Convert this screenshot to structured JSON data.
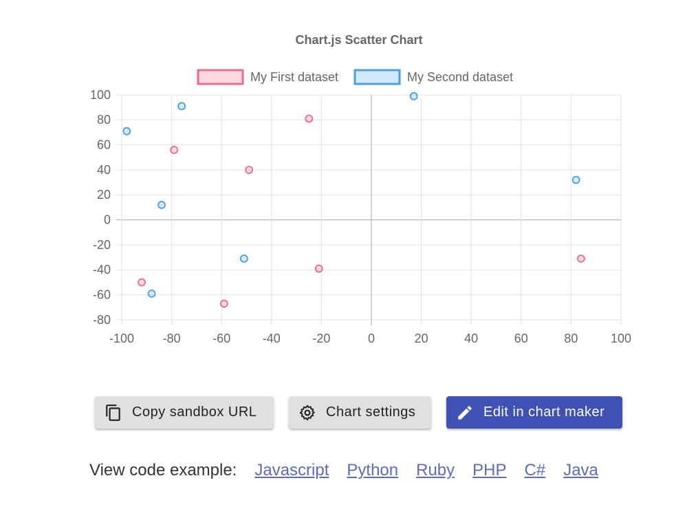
{
  "chart_data": {
    "type": "scatter",
    "title": "Chart.js Scatter Chart",
    "series": [
      {
        "name": "My First dataset",
        "color": "#ec6b85",
        "x": [
          -79,
          -49,
          -25,
          -92,
          -59,
          -21,
          84
        ],
        "values": [
          56,
          40,
          81,
          -50,
          -67,
          -39,
          -31
        ]
      },
      {
        "name": "My Second dataset",
        "color": "#4a9fe0",
        "x": [
          -98,
          -76,
          -84,
          -88,
          -51,
          17,
          82
        ],
        "values": [
          71,
          91,
          12,
          -59,
          -31,
          99,
          32
        ]
      }
    ],
    "xlim": [
      -100,
      100
    ],
    "xticks": [
      -100,
      -80,
      -60,
      -40,
      -20,
      0,
      20,
      40,
      60,
      80,
      100
    ],
    "ylim": [
      -80,
      100
    ],
    "yticks": [
      -80,
      -60,
      -40,
      -20,
      0,
      20,
      40,
      60,
      80,
      100
    ],
    "grid": true,
    "legend": "top"
  },
  "buttons": [
    "Copy sandbox URL",
    "Chart settings",
    "Edit in chart maker"
  ],
  "code_example": {
    "label": "View code example:",
    "links": [
      "Javascript",
      "Python",
      "Ruby",
      "PHP",
      "C#",
      "Java"
    ]
  }
}
